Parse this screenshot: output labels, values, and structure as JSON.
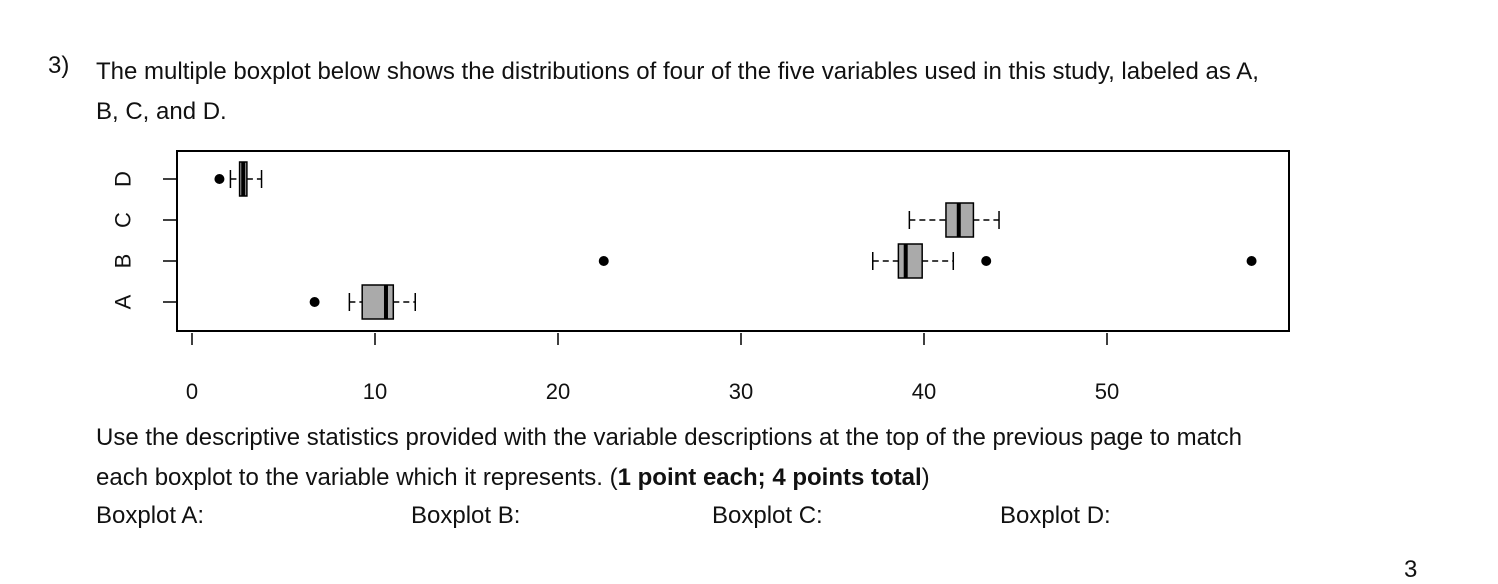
{
  "question": {
    "number": "3)",
    "text_line1": "The multiple boxplot below shows the distributions of four of the five variables used in this study, labeled as A,",
    "text_line2": "B, C, and D."
  },
  "chart_data": {
    "type": "boxplot",
    "orientation": "horizontal",
    "xlim": [
      -1,
      59
    ],
    "x_ticks": [
      0,
      10,
      20,
      30,
      40,
      50
    ],
    "categories": [
      "A",
      "B",
      "C",
      "D"
    ],
    "series": [
      {
        "name": "A",
        "lower_whisker": 8.6,
        "q1": 9.3,
        "median": 10.6,
        "q3": 11.0,
        "upper_whisker": 12.2,
        "outliers": [
          6.7
        ]
      },
      {
        "name": "B",
        "lower_whisker": 37.2,
        "q1": 38.6,
        "median": 39.0,
        "q3": 39.9,
        "upper_whisker": 41.6,
        "outliers": [
          22.5,
          43.4,
          57.9
        ]
      },
      {
        "name": "C",
        "lower_whisker": 39.2,
        "q1": 41.2,
        "median": 41.9,
        "q3": 42.7,
        "upper_whisker": 44.1,
        "outliers": []
      },
      {
        "name": "D",
        "lower_whisker": 2.1,
        "q1": 2.6,
        "median": 2.8,
        "q3": 3.0,
        "upper_whisker": 3.8,
        "outliers": [
          1.5
        ]
      }
    ],
    "box_fill": "#aaaaaa",
    "grid": false
  },
  "instructions": {
    "line1": "Use the descriptive statistics provided with the variable descriptions at the top of the previous page to match",
    "line2_plain": "each boxplot to the variable which it represents. (",
    "line2_bold": "1 point each; 4 points total",
    "line2_end": ")"
  },
  "answer_labels": {
    "a": "Boxplot A:",
    "b": "Boxplot B:",
    "c": "Boxplot C:",
    "d": "Boxplot D:"
  },
  "page_number": "3"
}
